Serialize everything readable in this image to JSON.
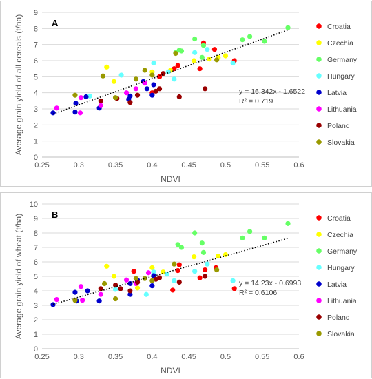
{
  "legend": [
    {
      "name": "Croatia",
      "color": "#ff0000"
    },
    {
      "name": "Czechia",
      "color": "#ffff00"
    },
    {
      "name": "Germany",
      "color": "#66ff66"
    },
    {
      "name": "Hungary",
      "color": "#66ffff"
    },
    {
      "name": "Latvia",
      "color": "#0000cc"
    },
    {
      "name": "Lithuania",
      "color": "#ff00ff"
    },
    {
      "name": "Poland",
      "color": "#990000"
    },
    {
      "name": "Slovakia",
      "color": "#999900"
    }
  ],
  "chart_data": [
    {
      "type": "scatter",
      "panel_label": "A",
      "xlabel": "NDVI",
      "ylabel": "Average grain yield of all cereals (t/ha)",
      "xlim": [
        0.25,
        0.6
      ],
      "ylim": [
        0,
        9
      ],
      "xticks": [
        "0.25",
        "0.3",
        "0.35",
        "0.4",
        "0.45",
        "0.5",
        "0.55",
        "0.6"
      ],
      "yticks": [
        "0",
        "1",
        "2",
        "3",
        "4",
        "5",
        "6",
        "7",
        "8",
        "9"
      ],
      "grid": true,
      "legend_position": "right",
      "trendline": {
        "slope": 16.342,
        "intercept": -1.6522,
        "equation": "y = 16.342x - 1.6522",
        "r2": "R² = 0.719"
      },
      "series": [
        {
          "name": "Croatia",
          "points": [
            [
              0.47,
              7.1
            ],
            [
              0.485,
              6.7
            ],
            [
              0.512,
              6.0
            ],
            [
              0.465,
              5.5
            ],
            [
              0.435,
              5.7
            ],
            [
              0.41,
              5.0
            ],
            [
              0.4,
              4.0
            ],
            [
              0.43,
              5.5
            ]
          ]
        },
        {
          "name": "Czechia",
          "points": [
            [
              0.338,
              5.6
            ],
            [
              0.348,
              4.7
            ],
            [
              0.4,
              5.3
            ],
            [
              0.425,
              5.4
            ],
            [
              0.457,
              6.0
            ],
            [
              0.478,
              6.1
            ],
            [
              0.49,
              6.2
            ],
            [
              0.5,
              6.3
            ]
          ]
        },
        {
          "name": "Germany",
          "points": [
            [
              0.432,
              6.5
            ],
            [
              0.437,
              6.65
            ],
            [
              0.44,
              6.6
            ],
            [
              0.458,
              7.35
            ],
            [
              0.468,
              6.2
            ],
            [
              0.47,
              6.95
            ],
            [
              0.523,
              7.3
            ],
            [
              0.533,
              7.5
            ],
            [
              0.553,
              7.2
            ],
            [
              0.585,
              8.05
            ]
          ]
        },
        {
          "name": "Hungary",
          "points": [
            [
              0.315,
              3.8
            ],
            [
              0.358,
              5.1
            ],
            [
              0.402,
              5.85
            ],
            [
              0.422,
              5.3
            ],
            [
              0.43,
              4.85
            ],
            [
              0.458,
              6.5
            ],
            [
              0.475,
              6.7
            ],
            [
              0.51,
              5.85
            ]
          ]
        },
        {
          "name": "Latvia",
          "points": [
            [
              0.265,
              2.75
            ],
            [
              0.295,
              2.8
            ],
            [
              0.296,
              3.35
            ],
            [
              0.31,
              3.75
            ],
            [
              0.328,
              3.05
            ],
            [
              0.368,
              3.6
            ],
            [
              0.37,
              3.8
            ],
            [
              0.388,
              4.7
            ],
            [
              0.393,
              4.25
            ],
            [
              0.4,
              3.85
            ],
            [
              0.402,
              4.5
            ]
          ]
        },
        {
          "name": "Lithuania",
          "points": [
            [
              0.27,
              3.05
            ],
            [
              0.302,
              2.75
            ],
            [
              0.303,
              3.7
            ],
            [
              0.33,
              3.2
            ],
            [
              0.365,
              4.0
            ],
            [
              0.378,
              4.25
            ],
            [
              0.39,
              4.6
            ]
          ]
        },
        {
          "name": "Poland",
          "points": [
            [
              0.33,
              3.5
            ],
            [
              0.352,
              3.65
            ],
            [
              0.37,
              3.4
            ],
            [
              0.38,
              3.85
            ],
            [
              0.405,
              4.1
            ],
            [
              0.41,
              4.25
            ],
            [
              0.415,
              5.2
            ],
            [
              0.437,
              3.75
            ],
            [
              0.472,
              4.25
            ]
          ]
        },
        {
          "name": "Slovakia",
          "points": [
            [
              0.295,
              3.85
            ],
            [
              0.333,
              5.05
            ],
            [
              0.35,
              3.7
            ],
            [
              0.378,
              4.85
            ],
            [
              0.39,
              5.4
            ],
            [
              0.4,
              5.1
            ],
            [
              0.432,
              6.45
            ],
            [
              0.488,
              6.05
            ]
          ]
        }
      ]
    },
    {
      "type": "scatter",
      "panel_label": "B",
      "xlabel": "NDVI",
      "ylabel": "Average grain yield of wheat (t/ha)",
      "xlim": [
        0.25,
        0.6
      ],
      "ylim": [
        0,
        10
      ],
      "xticks": [
        "0.25",
        "0.3",
        "0.35",
        "0.4",
        "0.45",
        "0.5",
        "0.55",
        "0.6"
      ],
      "yticks": [
        "0",
        "1",
        "2",
        "3",
        "4",
        "5",
        "6",
        "7",
        "8",
        "9",
        "10"
      ],
      "grid": true,
      "legend_position": "right",
      "trendline": {
        "slope": 14.23,
        "intercept": -0.6993,
        "equation": "y = 14.23x - 0.6993",
        "r2": "R² = 0.6106"
      },
      "series": [
        {
          "name": "Croatia",
          "points": [
            [
              0.375,
              5.35
            ],
            [
              0.428,
              4.05
            ],
            [
              0.435,
              5.4
            ],
            [
              0.437,
              5.8
            ],
            [
              0.465,
              4.9
            ],
            [
              0.472,
              5.45
            ],
            [
              0.487,
              5.6
            ],
            [
              0.512,
              4.15
            ]
          ]
        },
        {
          "name": "Czechia",
          "points": [
            [
              0.338,
              5.7
            ],
            [
              0.348,
              5.0
            ],
            [
              0.38,
              4.2
            ],
            [
              0.4,
              5.6
            ],
            [
              0.415,
              5.3
            ],
            [
              0.457,
              6.35
            ],
            [
              0.49,
              6.4
            ],
            [
              0.5,
              6.5
            ]
          ]
        },
        {
          "name": "Germany",
          "points": [
            [
              0.435,
              7.2
            ],
            [
              0.44,
              7.0
            ],
            [
              0.458,
              8.0
            ],
            [
              0.468,
              7.3
            ],
            [
              0.47,
              6.65
            ],
            [
              0.523,
              7.65
            ],
            [
              0.533,
              8.1
            ],
            [
              0.553,
              7.65
            ],
            [
              0.585,
              8.65
            ]
          ]
        },
        {
          "name": "Hungary",
          "points": [
            [
              0.35,
              4.1
            ],
            [
              0.392,
              3.75
            ],
            [
              0.402,
              5.3
            ],
            [
              0.42,
              5.15
            ],
            [
              0.43,
              4.7
            ],
            [
              0.458,
              5.35
            ],
            [
              0.475,
              5.85
            ],
            [
              0.51,
              4.7
            ]
          ]
        },
        {
          "name": "Latvia",
          "points": [
            [
              0.265,
              3.05
            ],
            [
              0.295,
              3.9
            ],
            [
              0.297,
              3.3
            ],
            [
              0.312,
              4.0
            ],
            [
              0.328,
              3.3
            ],
            [
              0.37,
              3.75
            ],
            [
              0.37,
              4.5
            ],
            [
              0.38,
              4.75
            ],
            [
              0.4,
              4.35
            ],
            [
              0.402,
              5.05
            ]
          ]
        },
        {
          "name": "Lithuania",
          "points": [
            [
              0.27,
              3.4
            ],
            [
              0.303,
              4.3
            ],
            [
              0.305,
              3.35
            ],
            [
              0.33,
              3.75
            ],
            [
              0.365,
              4.75
            ],
            [
              0.378,
              4.5
            ],
            [
              0.395,
              5.25
            ]
          ]
        },
        {
          "name": "Poland",
          "points": [
            [
              0.33,
              4.15
            ],
            [
              0.35,
              4.4
            ],
            [
              0.357,
              4.15
            ],
            [
              0.37,
              4.0
            ],
            [
              0.38,
              4.6
            ],
            [
              0.405,
              4.8
            ],
            [
              0.41,
              4.9
            ],
            [
              0.437,
              4.6
            ],
            [
              0.472,
              5.0
            ]
          ]
        },
        {
          "name": "Slovakia",
          "points": [
            [
              0.295,
              3.35
            ],
            [
              0.335,
              4.5
            ],
            [
              0.35,
              3.45
            ],
            [
              0.378,
              4.85
            ],
            [
              0.39,
              4.85
            ],
            [
              0.4,
              4.7
            ],
            [
              0.43,
              5.85
            ],
            [
              0.488,
              5.45
            ]
          ]
        }
      ]
    }
  ]
}
